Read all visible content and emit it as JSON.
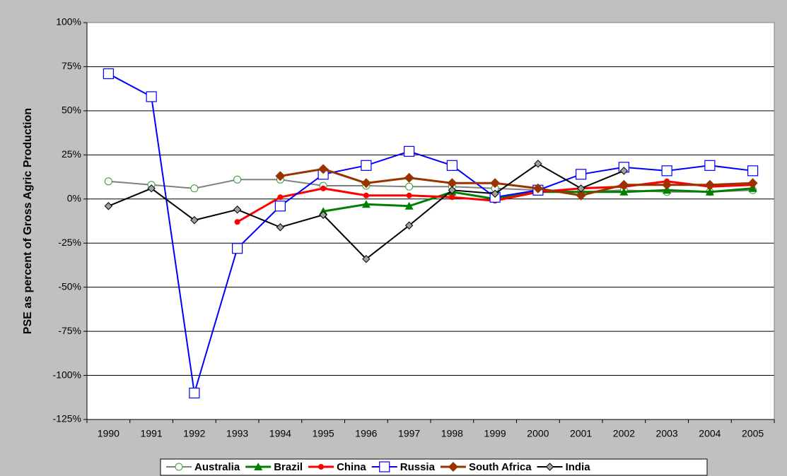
{
  "chart_data": {
    "type": "line",
    "y_label": "PSE as percent of Gross Agric Production",
    "categories": [
      "1990",
      "1991",
      "1992",
      "1993",
      "1994",
      "1995",
      "1996",
      "1997",
      "1998",
      "1999",
      "2000",
      "2001",
      "2002",
      "2003",
      "2004",
      "2005"
    ],
    "ylim": [
      -125,
      100
    ],
    "yticks": [
      {
        "value": -125,
        "label": "-125%"
      },
      {
        "value": -100,
        "label": "-100%"
      },
      {
        "value": -75,
        "label": "-75%"
      },
      {
        "value": -50,
        "label": "-50%"
      },
      {
        "value": -25,
        "label": "-25%"
      },
      {
        "value": 0,
        "label": "0%"
      },
      {
        "value": 25,
        "label": "25%"
      },
      {
        "value": 50,
        "label": "50%"
      },
      {
        "value": 75,
        "label": "75%"
      },
      {
        "value": 100,
        "label": "100%"
      }
    ],
    "grid": true,
    "legend": "bottom",
    "series": [
      {
        "name": "Australia",
        "color": "#808080",
        "marker": "circle",
        "marker_color": "#339933",
        "line_width": 2,
        "values": [
          10,
          8,
          6,
          11,
          11,
          7.5,
          7.5,
          7,
          7,
          6,
          5,
          4,
          5,
          4,
          4,
          5
        ]
      },
      {
        "name": "Brazil",
        "color": "#008000",
        "marker": "triangle",
        "marker_color": "#008000",
        "line_width": 3,
        "values": [
          null,
          null,
          null,
          null,
          null,
          -7,
          -3,
          -4,
          4,
          0,
          4,
          4,
          4,
          5,
          4,
          6
        ]
      },
      {
        "name": "China",
        "color": "#ff0000",
        "marker": "dot",
        "marker_color": "#ff0000",
        "line_width": 3,
        "values": [
          null,
          null,
          null,
          -13,
          1,
          6,
          2,
          2,
          1,
          -1,
          4,
          6,
          7,
          10,
          7,
          8
        ]
      },
      {
        "name": "Russia",
        "color": "#0000ff",
        "marker": "square",
        "marker_color": "#0000ff",
        "line_width": 2,
        "values": [
          71,
          58,
          -110,
          -28,
          -4,
          14,
          19,
          27,
          19,
          1,
          5,
          14,
          18,
          16,
          19,
          16
        ]
      },
      {
        "name": "South Africa",
        "color": "#993300",
        "marker": "diamond",
        "marker_color": "#993300",
        "line_width": 3,
        "values": [
          null,
          null,
          null,
          null,
          13,
          17,
          9,
          12,
          9,
          9,
          6,
          2,
          8,
          8,
          8,
          9
        ]
      },
      {
        "name": "India",
        "color": "#000000",
        "marker": "smalldiamond",
        "marker_color": "#000000",
        "line_width": 2,
        "values": [
          -4,
          6,
          -12,
          -6,
          -16,
          -9,
          -34,
          -15,
          5,
          3,
          20,
          6,
          16,
          null,
          null,
          null
        ]
      }
    ]
  }
}
